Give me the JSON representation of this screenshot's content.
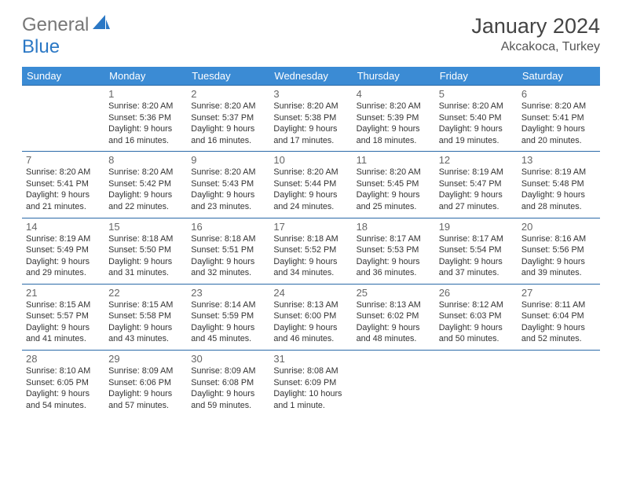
{
  "brand": {
    "part1": "General",
    "part2": "Blue",
    "accent": "#2b78c5"
  },
  "title": "January 2024",
  "location": "Akcakoca, Turkey",
  "colors": {
    "header_bg": "#3b8bd4",
    "header_text": "#ffffff",
    "cell_border": "#2b6aa8",
    "daynum": "#666666",
    "body_text": "#333333"
  },
  "weekdays": [
    "Sunday",
    "Monday",
    "Tuesday",
    "Wednesday",
    "Thursday",
    "Friday",
    "Saturday"
  ],
  "weeks": [
    [
      null,
      {
        "n": "1",
        "sr": "Sunrise: 8:20 AM",
        "ss": "Sunset: 5:36 PM",
        "d1": "Daylight: 9 hours",
        "d2": "and 16 minutes."
      },
      {
        "n": "2",
        "sr": "Sunrise: 8:20 AM",
        "ss": "Sunset: 5:37 PM",
        "d1": "Daylight: 9 hours",
        "d2": "and 16 minutes."
      },
      {
        "n": "3",
        "sr": "Sunrise: 8:20 AM",
        "ss": "Sunset: 5:38 PM",
        "d1": "Daylight: 9 hours",
        "d2": "and 17 minutes."
      },
      {
        "n": "4",
        "sr": "Sunrise: 8:20 AM",
        "ss": "Sunset: 5:39 PM",
        "d1": "Daylight: 9 hours",
        "d2": "and 18 minutes."
      },
      {
        "n": "5",
        "sr": "Sunrise: 8:20 AM",
        "ss": "Sunset: 5:40 PM",
        "d1": "Daylight: 9 hours",
        "d2": "and 19 minutes."
      },
      {
        "n": "6",
        "sr": "Sunrise: 8:20 AM",
        "ss": "Sunset: 5:41 PM",
        "d1": "Daylight: 9 hours",
        "d2": "and 20 minutes."
      }
    ],
    [
      {
        "n": "7",
        "sr": "Sunrise: 8:20 AM",
        "ss": "Sunset: 5:41 PM",
        "d1": "Daylight: 9 hours",
        "d2": "and 21 minutes."
      },
      {
        "n": "8",
        "sr": "Sunrise: 8:20 AM",
        "ss": "Sunset: 5:42 PM",
        "d1": "Daylight: 9 hours",
        "d2": "and 22 minutes."
      },
      {
        "n": "9",
        "sr": "Sunrise: 8:20 AM",
        "ss": "Sunset: 5:43 PM",
        "d1": "Daylight: 9 hours",
        "d2": "and 23 minutes."
      },
      {
        "n": "10",
        "sr": "Sunrise: 8:20 AM",
        "ss": "Sunset: 5:44 PM",
        "d1": "Daylight: 9 hours",
        "d2": "and 24 minutes."
      },
      {
        "n": "11",
        "sr": "Sunrise: 8:20 AM",
        "ss": "Sunset: 5:45 PM",
        "d1": "Daylight: 9 hours",
        "d2": "and 25 minutes."
      },
      {
        "n": "12",
        "sr": "Sunrise: 8:19 AM",
        "ss": "Sunset: 5:47 PM",
        "d1": "Daylight: 9 hours",
        "d2": "and 27 minutes."
      },
      {
        "n": "13",
        "sr": "Sunrise: 8:19 AM",
        "ss": "Sunset: 5:48 PM",
        "d1": "Daylight: 9 hours",
        "d2": "and 28 minutes."
      }
    ],
    [
      {
        "n": "14",
        "sr": "Sunrise: 8:19 AM",
        "ss": "Sunset: 5:49 PM",
        "d1": "Daylight: 9 hours",
        "d2": "and 29 minutes."
      },
      {
        "n": "15",
        "sr": "Sunrise: 8:18 AM",
        "ss": "Sunset: 5:50 PM",
        "d1": "Daylight: 9 hours",
        "d2": "and 31 minutes."
      },
      {
        "n": "16",
        "sr": "Sunrise: 8:18 AM",
        "ss": "Sunset: 5:51 PM",
        "d1": "Daylight: 9 hours",
        "d2": "and 32 minutes."
      },
      {
        "n": "17",
        "sr": "Sunrise: 8:18 AM",
        "ss": "Sunset: 5:52 PM",
        "d1": "Daylight: 9 hours",
        "d2": "and 34 minutes."
      },
      {
        "n": "18",
        "sr": "Sunrise: 8:17 AM",
        "ss": "Sunset: 5:53 PM",
        "d1": "Daylight: 9 hours",
        "d2": "and 36 minutes."
      },
      {
        "n": "19",
        "sr": "Sunrise: 8:17 AM",
        "ss": "Sunset: 5:54 PM",
        "d1": "Daylight: 9 hours",
        "d2": "and 37 minutes."
      },
      {
        "n": "20",
        "sr": "Sunrise: 8:16 AM",
        "ss": "Sunset: 5:56 PM",
        "d1": "Daylight: 9 hours",
        "d2": "and 39 minutes."
      }
    ],
    [
      {
        "n": "21",
        "sr": "Sunrise: 8:15 AM",
        "ss": "Sunset: 5:57 PM",
        "d1": "Daylight: 9 hours",
        "d2": "and 41 minutes."
      },
      {
        "n": "22",
        "sr": "Sunrise: 8:15 AM",
        "ss": "Sunset: 5:58 PM",
        "d1": "Daylight: 9 hours",
        "d2": "and 43 minutes."
      },
      {
        "n": "23",
        "sr": "Sunrise: 8:14 AM",
        "ss": "Sunset: 5:59 PM",
        "d1": "Daylight: 9 hours",
        "d2": "and 45 minutes."
      },
      {
        "n": "24",
        "sr": "Sunrise: 8:13 AM",
        "ss": "Sunset: 6:00 PM",
        "d1": "Daylight: 9 hours",
        "d2": "and 46 minutes."
      },
      {
        "n": "25",
        "sr": "Sunrise: 8:13 AM",
        "ss": "Sunset: 6:02 PM",
        "d1": "Daylight: 9 hours",
        "d2": "and 48 minutes."
      },
      {
        "n": "26",
        "sr": "Sunrise: 8:12 AM",
        "ss": "Sunset: 6:03 PM",
        "d1": "Daylight: 9 hours",
        "d2": "and 50 minutes."
      },
      {
        "n": "27",
        "sr": "Sunrise: 8:11 AM",
        "ss": "Sunset: 6:04 PM",
        "d1": "Daylight: 9 hours",
        "d2": "and 52 minutes."
      }
    ],
    [
      {
        "n": "28",
        "sr": "Sunrise: 8:10 AM",
        "ss": "Sunset: 6:05 PM",
        "d1": "Daylight: 9 hours",
        "d2": "and 54 minutes."
      },
      {
        "n": "29",
        "sr": "Sunrise: 8:09 AM",
        "ss": "Sunset: 6:06 PM",
        "d1": "Daylight: 9 hours",
        "d2": "and 57 minutes."
      },
      {
        "n": "30",
        "sr": "Sunrise: 8:09 AM",
        "ss": "Sunset: 6:08 PM",
        "d1": "Daylight: 9 hours",
        "d2": "and 59 minutes."
      },
      {
        "n": "31",
        "sr": "Sunrise: 8:08 AM",
        "ss": "Sunset: 6:09 PM",
        "d1": "Daylight: 10 hours",
        "d2": "and 1 minute."
      },
      null,
      null,
      null
    ]
  ]
}
